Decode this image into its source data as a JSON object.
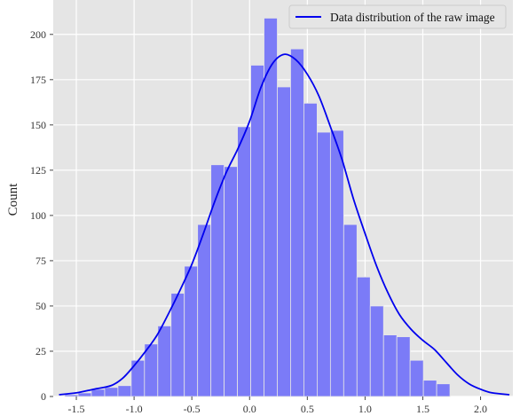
{
  "chart_data": {
    "type": "bar",
    "subtype": "histogram-with-kde",
    "title": "",
    "xlabel": "",
    "ylabel": "Count",
    "xlim": [
      -1.7,
      2.28
    ],
    "ylim": [
      0,
      219
    ],
    "x_ticks": [
      -1.5,
      -1.0,
      -0.5,
      0.0,
      0.5,
      1.0,
      1.5,
      2.0
    ],
    "x_tick_labels": [
      "-1.5",
      "-1.0",
      "-0.5",
      "0.0",
      "0.5",
      "1.0",
      "1.5",
      "2.0"
    ],
    "y_ticks": [
      0,
      25,
      50,
      75,
      100,
      125,
      150,
      175,
      200
    ],
    "y_tick_labels": [
      "0",
      "25",
      "50",
      "75",
      "100",
      "125",
      "150",
      "175",
      "200"
    ],
    "grid": true,
    "bin_edges": [
      -1.6,
      -1.485,
      -1.37,
      -1.255,
      -1.14,
      -1.025,
      -0.91,
      -0.795,
      -0.68,
      -0.565,
      -0.45,
      -0.335,
      -0.22,
      -0.105,
      0.01,
      0.125,
      0.24,
      0.355,
      0.47,
      0.585,
      0.7,
      0.815,
      0.93,
      1.045,
      1.16,
      1.275,
      1.39,
      1.505,
      1.62,
      1.735,
      1.85,
      1.965,
      2.08
    ],
    "counts": [
      1,
      2,
      4,
      5,
      6,
      20,
      29,
      39,
      57,
      72,
      95,
      128,
      127,
      149,
      183,
      209,
      171,
      192,
      162,
      146,
      147,
      95,
      66,
      50,
      34,
      33,
      20,
      9,
      7,
      0,
      0,
      0
    ],
    "series": [
      {
        "name": "Data distribution of the raw image",
        "type": "line",
        "x": [
          -1.65,
          -1.5,
          -1.35,
          -1.2,
          -1.1,
          -1.0,
          -0.9,
          -0.8,
          -0.7,
          -0.6,
          -0.5,
          -0.4,
          -0.3,
          -0.2,
          -0.1,
          0.0,
          0.1,
          0.2,
          0.3,
          0.4,
          0.5,
          0.6,
          0.7,
          0.8,
          0.9,
          1.0,
          1.1,
          1.2,
          1.3,
          1.4,
          1.5,
          1.6,
          1.7,
          1.8,
          1.9,
          2.0,
          2.1,
          2.25
        ],
        "y": [
          1,
          2,
          4,
          6,
          10,
          17,
          25,
          34,
          46,
          59,
          73,
          90,
          108,
          124,
          137,
          152,
          171,
          184,
          189,
          186,
          178,
          166,
          149,
          131,
          109,
          90,
          72,
          57,
          45,
          37,
          31,
          26,
          19,
          12,
          7,
          4,
          2,
          1
        ]
      }
    ],
    "legend_position": "top-right",
    "colors": {
      "bar_fill": "#7b7bf7",
      "bar_stroke": "#e6e6e6",
      "kde_line": "#0000ee",
      "plot_background": "#e5e5e5",
      "grid": "#ffffff"
    }
  }
}
